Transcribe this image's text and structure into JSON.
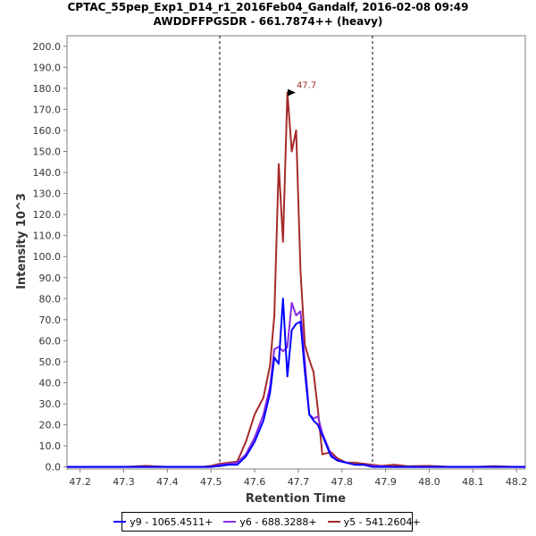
{
  "chart_data": {
    "type": "line",
    "title": "CPTAC_55pep_Exp1_D14_r1_2016Feb04_Gandalf, 2016-02-08 09:49",
    "subtitle": "AWDDFFPGSDR - 661.7874++ (heavy)",
    "xlabel": "Retention Time",
    "ylabel": "Intensity 10^3",
    "xlim": [
      47.17,
      48.22
    ],
    "ylim": [
      -1,
      205
    ],
    "xticks": [
      "47.2",
      "47.3",
      "47.4",
      "47.5",
      "47.6",
      "47.7",
      "47.8",
      "47.9",
      "48.0",
      "48.1",
      "48.2"
    ],
    "xtick_values": [
      47.2,
      47.3,
      47.4,
      47.5,
      47.6,
      47.7,
      47.8,
      47.9,
      48.0,
      48.1,
      48.2
    ],
    "yticks": [
      "0.0",
      "10.0",
      "20.0",
      "30.0",
      "40.0",
      "50.0",
      "60.0",
      "70.0",
      "80.0",
      "90.0",
      "100.0",
      "110.0",
      "120.0",
      "130.0",
      "140.0",
      "150.0",
      "160.0",
      "170.0",
      "180.0",
      "190.0",
      "200.0"
    ],
    "ytick_values": [
      0,
      10,
      20,
      30,
      40,
      50,
      60,
      70,
      80,
      90,
      100,
      110,
      120,
      130,
      140,
      150,
      160,
      170,
      180,
      190,
      200
    ],
    "boundaries": [
      47.52,
      47.87
    ],
    "peak_label": "47.7",
    "peak": {
      "x": 47.7,
      "y": 178
    },
    "x": [
      47.17,
      47.2,
      47.25,
      47.3,
      47.35,
      47.4,
      47.45,
      47.48,
      47.5,
      47.52,
      47.54,
      47.56,
      47.58,
      47.6,
      47.62,
      47.635,
      47.645,
      47.655,
      47.665,
      47.675,
      47.685,
      47.695,
      47.705,
      47.715,
      47.725,
      47.735,
      47.745,
      47.755,
      47.775,
      47.79,
      47.81,
      47.83,
      47.85,
      47.87,
      47.89,
      47.92,
      47.95,
      48.0,
      48.05,
      48.1,
      48.15,
      48.2,
      48.22
    ],
    "series": [
      {
        "name": "y9 - 1065.4511+",
        "color": "#0000ff",
        "values": [
          0,
          0,
          0,
          0,
          0,
          0,
          0,
          0,
          0,
          0.5,
          1,
          1,
          5,
          12,
          22,
          35,
          52,
          49,
          80,
          43,
          65,
          68,
          69,
          45,
          25,
          22,
          20,
          15,
          5,
          3,
          2,
          1,
          1,
          0,
          0,
          0,
          0,
          0,
          0,
          0,
          0,
          0,
          0
        ]
      },
      {
        "name": "y6 - 688.3288+",
        "color": "#8a2be2",
        "values": [
          0,
          0,
          0,
          0,
          0,
          0,
          0,
          0,
          0,
          1,
          1.5,
          2,
          6,
          14,
          25,
          38,
          56,
          57,
          55,
          57,
          78,
          72,
          74,
          50,
          25,
          23,
          24,
          16,
          6,
          3,
          2,
          1,
          1,
          0.5,
          0.3,
          0,
          0,
          0,
          0,
          0,
          0,
          0,
          0
        ]
      },
      {
        "name": "y5 - 541.2604+",
        "color": "#a52a2a",
        "values": [
          0,
          0,
          0,
          0,
          0.5,
          0,
          0,
          0,
          0.5,
          1.5,
          2,
          2.5,
          12,
          25,
          33,
          48,
          72,
          144,
          107,
          178,
          150,
          160,
          93,
          58,
          51,
          45,
          27,
          6,
          7,
          4,
          2,
          2,
          1.5,
          1,
          0.5,
          1,
          0.3,
          0.5,
          0,
          0,
          0.3,
          0,
          0
        ]
      }
    ]
  }
}
